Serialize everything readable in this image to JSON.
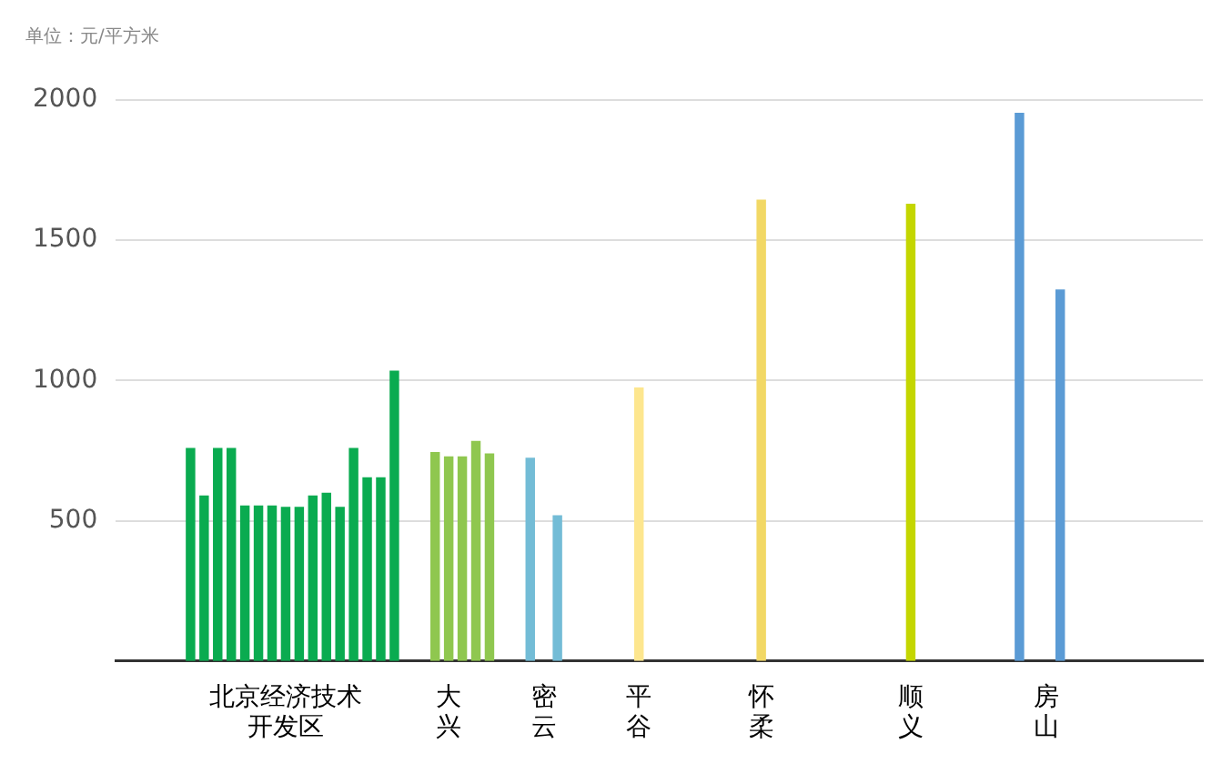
{
  "chart_data": {
    "type": "bar",
    "ylabel": "单位：元/平方米",
    "categories": [
      null,
      null,
      null,
      null,
      null,
      null,
      null,
      null,
      null,
      null,
      null,
      null,
      "北京经济技术开发区",
      null,
      null,
      null,
      null,
      null,
      null,
      null,
      null,
      null,
      null,
      null,
      "大兴",
      null,
      null,
      null,
      null,
      null,
      null,
      "密云",
      null,
      null,
      null,
      null,
      null,
      null,
      "平谷",
      null,
      null,
      null,
      null,
      null,
      null,
      null,
      null,
      "怀柔",
      null,
      null,
      null,
      null,
      null,
      null,
      null,
      null,
      null,
      null,
      "顺义",
      null,
      null,
      null,
      null,
      null,
      null,
      null,
      null,
      null,
      "房山",
      null,
      null,
      null,
      null,
      null,
      null,
      null,
      null,
      null,
      null,
      null
    ],
    "values": [
      null,
      null,
      null,
      null,
      null,
      760,
      590,
      760,
      760,
      555,
      555,
      555,
      550,
      550,
      590,
      600,
      550,
      760,
      655,
      655,
      1035,
      null,
      null,
      745,
      730,
      730,
      785,
      740,
      null,
      null,
      725,
      null,
      520,
      null,
      null,
      null,
      null,
      null,
      975,
      null,
      null,
      null,
      null,
      null,
      null,
      null,
      null,
      1645,
      null,
      null,
      null,
      null,
      null,
      null,
      null,
      null,
      null,
      null,
      1630,
      null,
      null,
      null,
      null,
      null,
      null,
      null,
      1955,
      null,
      null,
      1325,
      null,
      null,
      null,
      null,
      null,
      null,
      null,
      null,
      null,
      null
    ],
    "colors": [
      null,
      null,
      null,
      null,
      null,
      "#0aab50",
      "#0aab50",
      "#0aab50",
      "#0aab50",
      "#0aab50",
      "#0aab50",
      "#0aab50",
      "#0aab50",
      "#0aab50",
      "#0aab50",
      "#0aab50",
      "#0aab50",
      "#0aab50",
      "#0aab50",
      "#0aab50",
      "#0aab50",
      null,
      null,
      "#8fc74f",
      "#8fc74f",
      "#8fc74f",
      "#8fc74f",
      "#8fc74f",
      null,
      null,
      "#73bcd6",
      null,
      "#73bcd6",
      null,
      null,
      null,
      null,
      null,
      "#fde68e",
      null,
      null,
      null,
      null,
      null,
      null,
      null,
      null,
      "#f2d865",
      null,
      null,
      null,
      null,
      null,
      null,
      null,
      null,
      null,
      null,
      "#c4d600",
      null,
      null,
      null,
      null,
      null,
      null,
      null,
      "#5b9bd5",
      null,
      null,
      "#5b9bd5",
      null,
      null,
      null,
      null,
      null,
      null,
      null,
      null,
      null,
      null
    ],
    "ylim": [
      0,
      2000
    ],
    "yticks": [
      500,
      1000,
      1500,
      2000
    ],
    "grid": "y",
    "legend": false
  }
}
